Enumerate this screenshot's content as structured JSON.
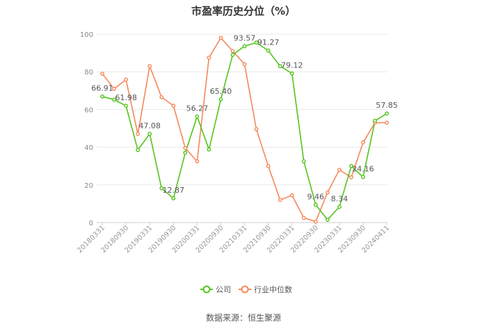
{
  "chart_data": {
    "type": "line",
    "title": "市盈率历史分位（%）",
    "ylim": [
      0,
      100
    ],
    "yticks": [
      0,
      20,
      40,
      60,
      80,
      100
    ],
    "grid": true,
    "legend_position": "bottom",
    "x": [
      "20180331",
      "20180630",
      "20180930",
      "20181231",
      "20190331",
      "20190630",
      "20190930",
      "20191231",
      "20200331",
      "20200630",
      "20200930",
      "20201231",
      "20210331",
      "20210630",
      "20210930",
      "20211231",
      "20220331",
      "20220630",
      "20220930",
      "20221231",
      "20230331",
      "20230630",
      "20230930",
      "20231231",
      "20240411"
    ],
    "x_tick_labels": [
      "20180331",
      "20180930",
      "20190331",
      "20190930",
      "20200331",
      "20200930",
      "20210331",
      "20210930",
      "20220331",
      "20220930",
      "20230331",
      "20230930",
      "20240411"
    ],
    "series": [
      {
        "name": "公司",
        "color": "#52c41a",
        "values": [
          66.91,
          65.2,
          61.98,
          38.5,
          47.08,
          18.2,
          12.87,
          37.0,
          56.27,
          38.8,
          65.4,
          89.0,
          93.57,
          95.5,
          91.27,
          83.0,
          79.12,
          32.5,
          9.46,
          1.5,
          8.34,
          30.0,
          24.16,
          54.0,
          57.85
        ],
        "labels": {
          "0": "66.91",
          "2": "61.98",
          "4": "47.08",
          "6": "12.87",
          "8": "56.27",
          "10": "65.40",
          "12": "93.57",
          "14": "91.27",
          "16": "79.12",
          "18": "9.46",
          "20": "8.34",
          "22": "24.16",
          "24": "57.85"
        }
      },
      {
        "name": "行业中位数",
        "color": "#f5875a",
        "values": [
          79.0,
          71.0,
          75.8,
          47.0,
          83.0,
          66.5,
          62.0,
          39.5,
          32.5,
          87.5,
          98.0,
          91.0,
          84.0,
          49.5,
          30.0,
          12.0,
          14.5,
          2.5,
          0.5,
          16.0,
          28.0,
          24.0,
          42.5,
          53.0,
          53.0
        ]
      }
    ]
  },
  "legend": [
    {
      "label": "公司",
      "color": "#52c41a"
    },
    {
      "label": "行业中位数",
      "color": "#f5875a"
    }
  ],
  "source": "数据来源：恒生聚源"
}
